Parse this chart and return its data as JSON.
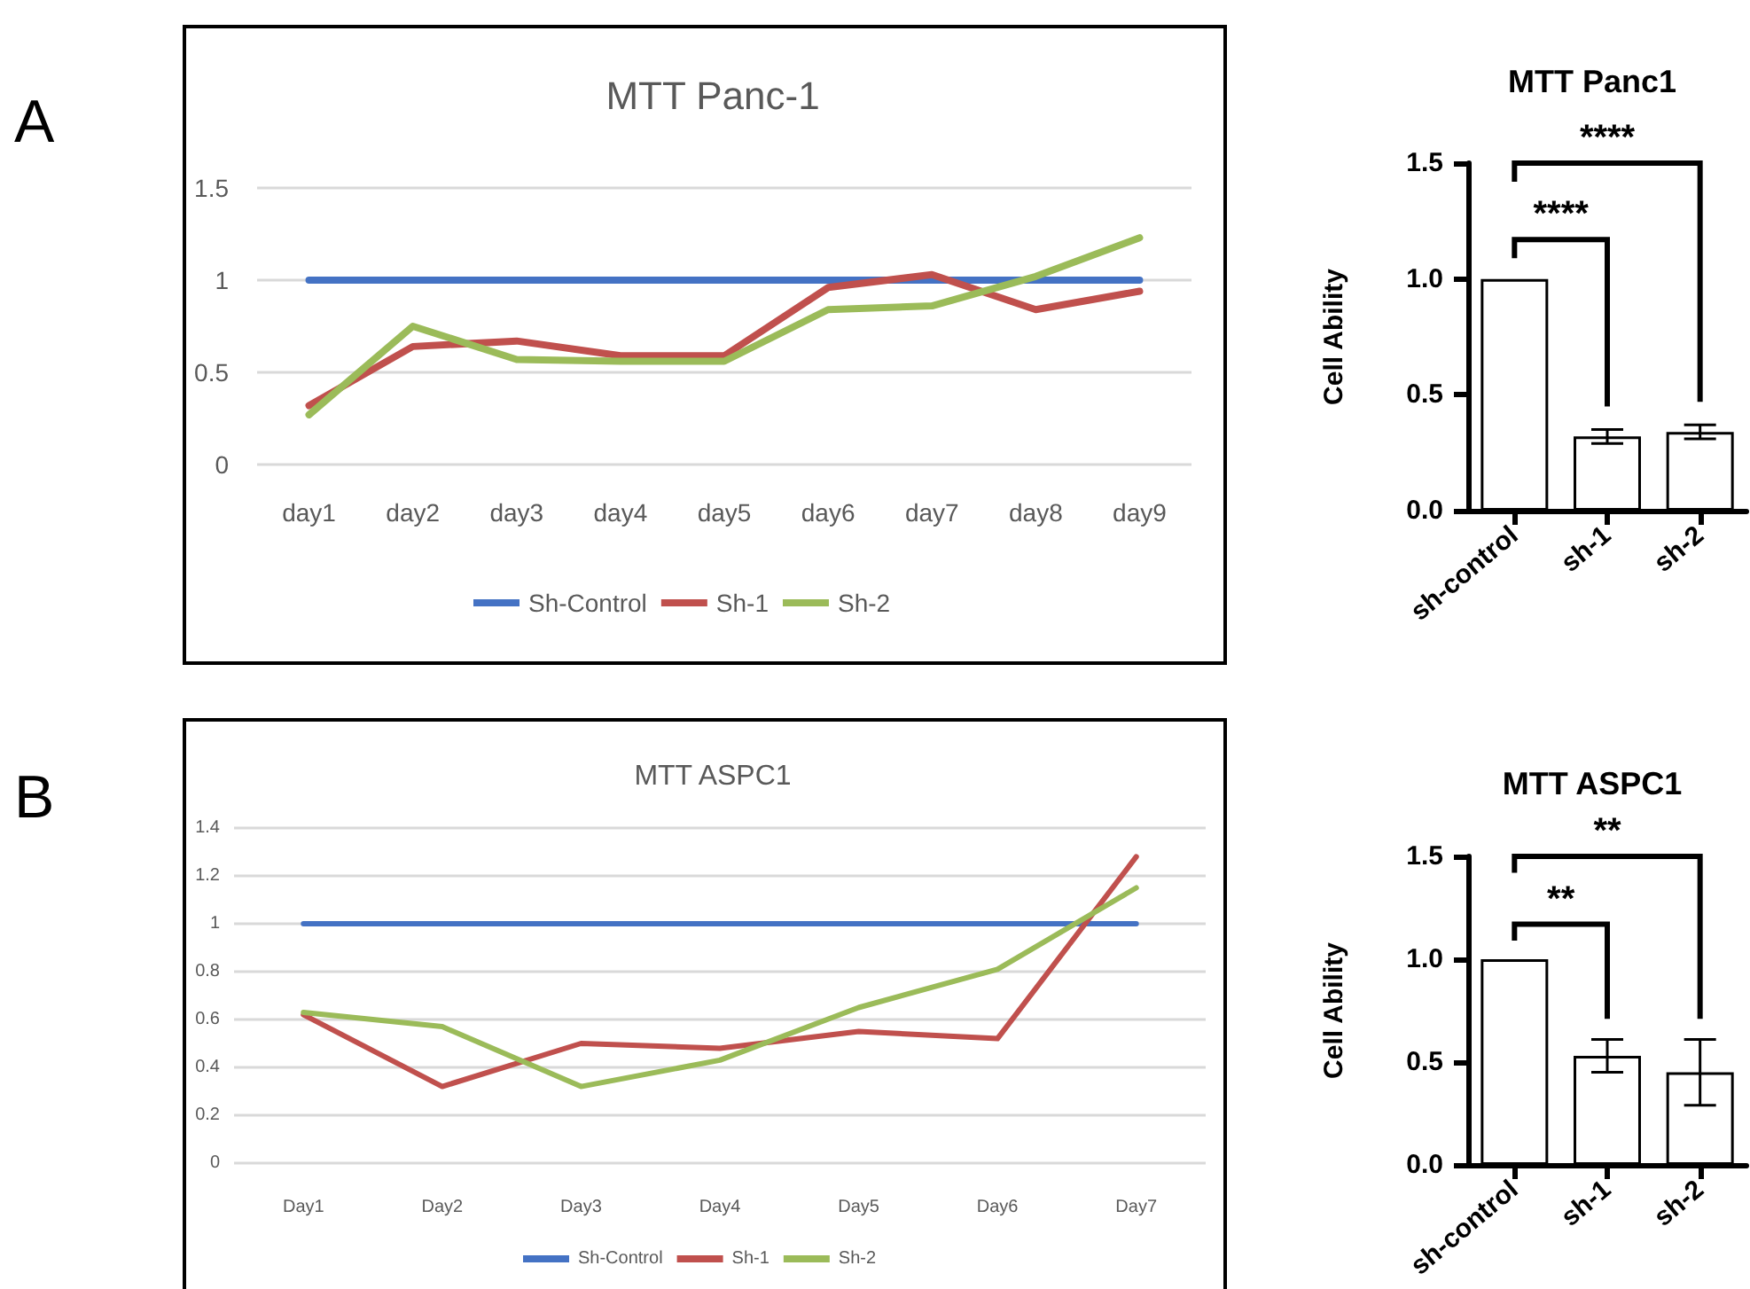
{
  "chart_data": [
    {
      "type": "line",
      "title": "MTT Panc-1",
      "annotations": [
        "A"
      ],
      "categories": [
        "day1",
        "day2",
        "day3",
        "day4",
        "day5",
        "day6",
        "day7",
        "day8",
        "day9"
      ],
      "series": [
        {
          "name": "Sh-Control",
          "color": "#4472c4",
          "values": [
            1,
            1,
            1,
            1,
            1,
            1,
            1,
            1,
            1
          ]
        },
        {
          "name": "Sh-1",
          "color": "#c0504d",
          "values": [
            0.32,
            0.64,
            0.67,
            0.59,
            0.59,
            0.96,
            1.03,
            0.84,
            0.94
          ]
        },
        {
          "name": "Sh-2",
          "color": "#9bbb59",
          "values": [
            0.27,
            0.75,
            0.57,
            0.56,
            0.56,
            0.84,
            0.86,
            1.02,
            1.23
          ]
        }
      ],
      "ylim": [
        0,
        1.5
      ],
      "yticks": [
        0,
        0.5,
        1,
        1.5
      ],
      "grid": "y",
      "legend": "bottom",
      "marker": "none"
    },
    {
      "type": "bar",
      "title": "MTT Panc1",
      "ylabel": "Cell Ability",
      "categories": [
        "sh-control",
        "sh-1",
        "sh-2"
      ],
      "values": [
        1,
        0.32,
        0.34
      ],
      "errors": [
        null,
        0.03,
        0.03
      ],
      "color": "#ffffff",
      "annotations": [
        "****",
        "****"
      ],
      "ylim": [
        0,
        1.5
      ],
      "yticks": [
        {
          "value": 0,
          "label": "0.0"
        },
        {
          "value": 0.5,
          "label": "0.5"
        },
        {
          "value": 1,
          "label": "1.0"
        },
        {
          "value": 1.5,
          "label": "1.5"
        }
      ]
    },
    {
      "type": "line",
      "title": "MTT ASPC1",
      "annotations": [
        "B"
      ],
      "categories": [
        "Day1",
        "Day2",
        "Day3",
        "Day4",
        "Day5",
        "Day6",
        "Day7"
      ],
      "series": [
        {
          "name": "Sh-Control",
          "color": "#4472c4",
          "values": [
            1,
            1,
            1,
            1,
            1,
            1,
            1
          ]
        },
        {
          "name": "Sh-1",
          "color": "#c0504d",
          "values": [
            0.62,
            0.32,
            0.5,
            0.48,
            0.55,
            0.52,
            1.28
          ]
        },
        {
          "name": "Sh-2",
          "color": "#9bbb59",
          "values": [
            0.63,
            0.57,
            0.32,
            0.43,
            0.65,
            0.81,
            1.15
          ]
        }
      ],
      "ylim": [
        0,
        1.4
      ],
      "yticks": [
        0,
        0.2,
        0.4,
        0.6,
        0.8,
        1,
        1.2,
        1.4
      ],
      "grid": "y",
      "legend": "bottom",
      "marker": "none"
    },
    {
      "type": "bar",
      "title": "MTT ASPC1",
      "ylabel": "Cell Ability",
      "categories": [
        "sh-control",
        "sh-1",
        "sh-2"
      ],
      "values": [
        1,
        0.53,
        0.45
      ],
      "errors": [
        null,
        0.08,
        0.16
      ],
      "color": "#ffffff",
      "annotations": [
        "**",
        "**"
      ],
      "ylim": [
        0,
        1.5
      ],
      "yticks": [
        {
          "value": 0,
          "label": "0.0"
        },
        {
          "value": 0.5,
          "label": "0.5"
        },
        {
          "value": 1,
          "label": "1.0"
        },
        {
          "value": 1.5,
          "label": "1.5"
        }
      ]
    }
  ]
}
